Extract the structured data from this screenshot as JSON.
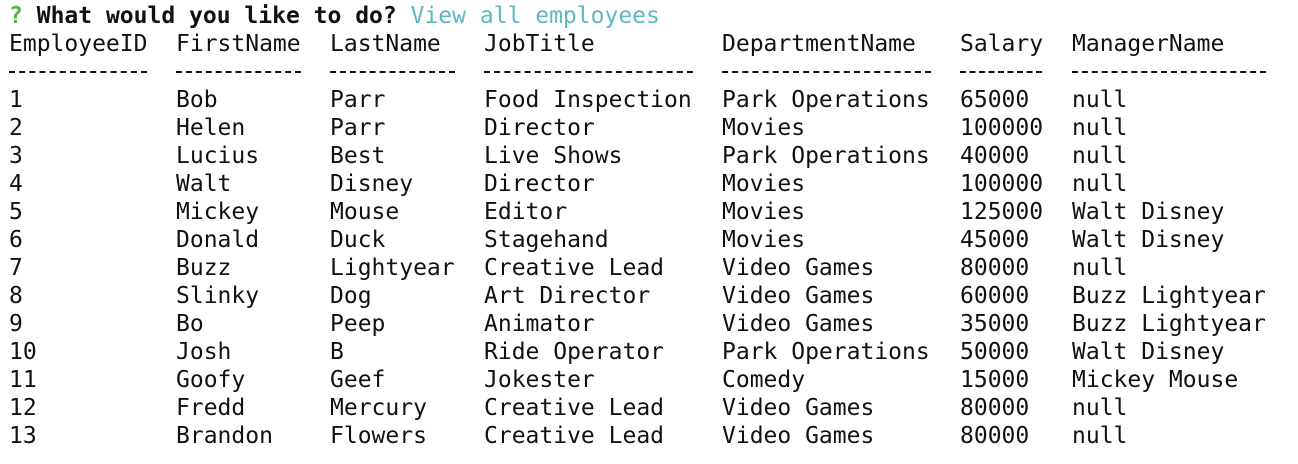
{
  "prompt": {
    "mark": "?",
    "question": "What would you like to do?",
    "answer": "View all employees"
  },
  "table": {
    "columns": [
      "EmployeeID",
      "FirstName",
      "LastName",
      "JobTitle",
      "DepartmentName",
      "Salary",
      "ManagerName"
    ],
    "separators": [
      "----------",
      "---------",
      "---------",
      "---------------",
      "---------------",
      "------",
      "--------------"
    ],
    "rows": [
      [
        "1",
        "Bob",
        "Parr",
        "Food Inspection",
        "Park Operations",
        "65000",
        "null"
      ],
      [
        "2",
        "Helen",
        "Parr",
        "Director",
        "Movies",
        "100000",
        "null"
      ],
      [
        "3",
        "Lucius",
        "Best",
        "Live Shows",
        "Park Operations",
        "40000",
        "null"
      ],
      [
        "4",
        "Walt",
        "Disney",
        "Director",
        "Movies",
        "100000",
        "null"
      ],
      [
        "5",
        "Mickey",
        "Mouse",
        "Editor",
        "Movies",
        "125000",
        "Walt Disney"
      ],
      [
        "6",
        "Donald",
        "Duck",
        "Stagehand",
        "Movies",
        "45000",
        "Walt Disney"
      ],
      [
        "7",
        "Buzz",
        "Lightyear",
        "Creative Lead",
        "Video Games",
        "80000",
        "null"
      ],
      [
        "8",
        "Slinky",
        "Dog",
        "Art Director",
        "Video Games",
        "60000",
        "Buzz Lightyear"
      ],
      [
        "9",
        "Bo",
        "Peep",
        "Animator",
        "Video Games",
        "35000",
        "Buzz Lightyear"
      ],
      [
        "10",
        "Josh",
        "B",
        "Ride Operator",
        "Park Operations",
        "50000",
        "Walt Disney"
      ],
      [
        "11",
        "Goofy",
        "Geef",
        "Jokester",
        "Comedy",
        "15000",
        "Mickey Mouse"
      ],
      [
        "12",
        "Fredd",
        "Mercury",
        "Creative Lead",
        "Video Games",
        "80000",
        "null"
      ],
      [
        "13",
        "Brandon",
        "Flowers",
        "Creative Lead",
        "Video Games",
        "80000",
        "null"
      ]
    ]
  },
  "colors": {
    "prompt_mark": "#5dae4a",
    "answer": "#5fb8c2",
    "text": "#111111",
    "background": "#ffffff"
  }
}
